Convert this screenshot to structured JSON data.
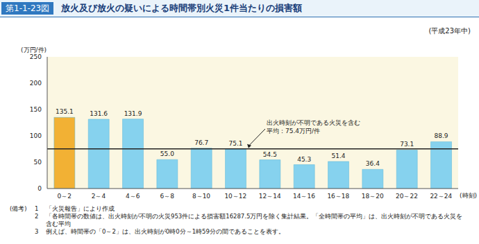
{
  "figure_number": "第1-1-23図",
  "chart_data": {
    "type": "bar",
    "title": "放火及び放火の疑いによる時間帯別火災1件当たりの損害額",
    "subtitle": "(平成23年中)",
    "y_label": "(万円/件)",
    "x_label": "(時刻)",
    "categories": [
      "0～2",
      "2～4",
      "4～6",
      "6～8",
      "8～10",
      "10～12",
      "12～14",
      "14～16",
      "16～18",
      "18～20",
      "20～22",
      "22～24"
    ],
    "values": [
      135.1,
      131.6,
      131.9,
      55.0,
      76.7,
      75.1,
      54.5,
      45.3,
      51.4,
      36.4,
      73.1,
      88.9
    ],
    "value_labels": [
      "135.1",
      "131.6",
      "131.9",
      "55.0",
      "76.7",
      "75.1",
      "54.5",
      "45.3",
      "51.4",
      "36.4",
      "73.1",
      "88.9"
    ],
    "colors": [
      "#f2b134",
      "#86d2ee",
      "#86d2ee",
      "#86d2ee",
      "#86d2ee",
      "#86d2ee",
      "#86d2ee",
      "#86d2ee",
      "#86d2ee",
      "#86d2ee",
      "#86d2ee",
      "#86d2ee"
    ],
    "ylim": [
      0,
      250
    ],
    "yticks": [
      0,
      50,
      100,
      150,
      200,
      250
    ],
    "grid": false,
    "data_labels": true,
    "reference_line": {
      "value": 75.4,
      "label": [
        "出火時刻が不明である火災を含む",
        "平均：75.4万円/件"
      ]
    }
  },
  "notes": {
    "heading": "(備考)",
    "items": [
      {
        "number": "1",
        "text": "「火災報告」により作成"
      },
      {
        "number": "2",
        "text": "「各時間帯の数値は、出火時刻が不明の火災953件による損害額16287.5万円を除く集計結果。「全時間帯の平均」は、出火時刻が不明である火災を含む平均"
      },
      {
        "number": "3",
        "text": "例えば、時間帯の「0～2」は、出火時刻が0時0分～1時59分の間であることを表す。"
      }
    ]
  }
}
